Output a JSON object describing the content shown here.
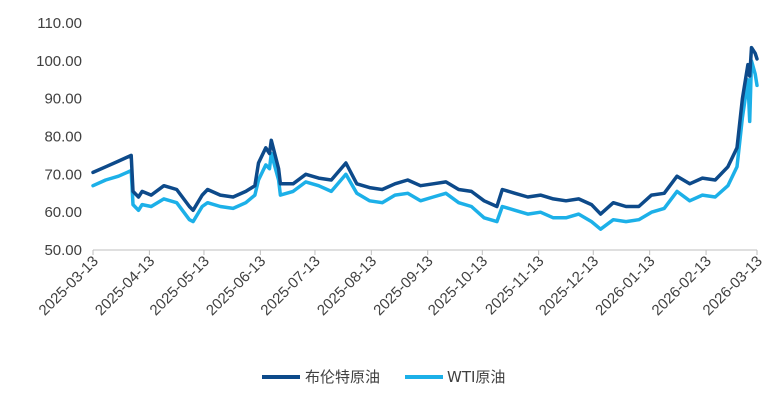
{
  "chart_data": {
    "type": "line",
    "title": "",
    "xlabel": "",
    "ylabel": "",
    "ylim": [
      50,
      110
    ],
    "yticks": [
      "50.00",
      "60.00",
      "70.00",
      "80.00",
      "90.00",
      "100.00",
      "110.00"
    ],
    "grid": false,
    "legend_position": "bottom-center",
    "x_start": "2025-03-13",
    "x_end": "2026-03-13",
    "xtick_labels": [
      "2025-03-13",
      "2025-04-13",
      "2025-05-13",
      "2025-06-13",
      "2025-07-13",
      "2025-08-13",
      "2025-09-13",
      "2025-10-13",
      "2025-11-13",
      "2025-12-13",
      "2026-01-13",
      "2026-02-13",
      "2026-03-13"
    ],
    "series": [
      {
        "name": "布伦特原油",
        "color": "#0d4a8a",
        "points": [
          [
            "2025-03-13",
            70.5
          ],
          [
            "2025-03-20",
            72.0
          ],
          [
            "2025-03-27",
            73.5
          ],
          [
            "2025-04-03",
            75.0
          ],
          [
            "2025-04-04",
            65.5
          ],
          [
            "2025-04-07",
            64.0
          ],
          [
            "2025-04-09",
            65.5
          ],
          [
            "2025-04-14",
            64.5
          ],
          [
            "2025-04-21",
            67.0
          ],
          [
            "2025-04-28",
            66.0
          ],
          [
            "2025-05-05",
            61.5
          ],
          [
            "2025-05-07",
            60.5
          ],
          [
            "2025-05-12",
            64.5
          ],
          [
            "2025-05-15",
            66.0
          ],
          [
            "2025-05-22",
            64.5
          ],
          [
            "2025-05-29",
            64.0
          ],
          [
            "2025-06-05",
            65.5
          ],
          [
            "2025-06-10",
            67.0
          ],
          [
            "2025-06-12",
            73.0
          ],
          [
            "2025-06-16",
            77.0
          ],
          [
            "2025-06-18",
            75.5
          ],
          [
            "2025-06-19",
            79.0
          ],
          [
            "2025-06-23",
            71.5
          ],
          [
            "2025-06-24",
            67.5
          ],
          [
            "2025-07-01",
            67.5
          ],
          [
            "2025-07-08",
            70.0
          ],
          [
            "2025-07-15",
            69.0
          ],
          [
            "2025-07-22",
            68.5
          ],
          [
            "2025-07-30",
            73.0
          ],
          [
            "2025-08-05",
            67.5
          ],
          [
            "2025-08-12",
            66.5
          ],
          [
            "2025-08-19",
            66.0
          ],
          [
            "2025-08-26",
            67.5
          ],
          [
            "2025-09-02",
            68.5
          ],
          [
            "2025-09-09",
            67.0
          ],
          [
            "2025-09-16",
            67.5
          ],
          [
            "2025-09-23",
            68.0
          ],
          [
            "2025-09-30",
            66.0
          ],
          [
            "2025-10-07",
            65.5
          ],
          [
            "2025-10-14",
            63.0
          ],
          [
            "2025-10-21",
            61.5
          ],
          [
            "2025-10-24",
            66.0
          ],
          [
            "2025-10-31",
            65.0
          ],
          [
            "2025-11-07",
            64.0
          ],
          [
            "2025-11-14",
            64.5
          ],
          [
            "2025-11-21",
            63.5
          ],
          [
            "2025-11-28",
            63.0
          ],
          [
            "2025-12-05",
            63.5
          ],
          [
            "2025-12-12",
            62.0
          ],
          [
            "2025-12-17",
            59.5
          ],
          [
            "2025-12-24",
            62.5
          ],
          [
            "2025-12-31",
            61.5
          ],
          [
            "2026-01-07",
            61.5
          ],
          [
            "2026-01-14",
            64.5
          ],
          [
            "2026-01-21",
            65.0
          ],
          [
            "2026-01-28",
            69.5
          ],
          [
            "2026-02-04",
            67.5
          ],
          [
            "2026-02-11",
            69.0
          ],
          [
            "2026-02-18",
            68.5
          ],
          [
            "2026-02-25",
            72.0
          ],
          [
            "2026-03-02",
            77.0
          ],
          [
            "2026-03-05",
            90.0
          ],
          [
            "2026-03-08",
            99.0
          ],
          [
            "2026-03-09",
            96.0
          ],
          [
            "2026-03-10",
            103.5
          ],
          [
            "2026-03-12",
            102.0
          ],
          [
            "2026-03-13",
            100.5
          ]
        ]
      },
      {
        "name": "WTI原油",
        "color": "#1cb0e8",
        "points": [
          [
            "2025-03-13",
            67.0
          ],
          [
            "2025-03-20",
            68.5
          ],
          [
            "2025-03-27",
            69.5
          ],
          [
            "2025-04-03",
            71.0
          ],
          [
            "2025-04-04",
            62.0
          ],
          [
            "2025-04-07",
            60.5
          ],
          [
            "2025-04-09",
            62.0
          ],
          [
            "2025-04-14",
            61.5
          ],
          [
            "2025-04-21",
            63.5
          ],
          [
            "2025-04-28",
            62.5
          ],
          [
            "2025-05-05",
            58.0
          ],
          [
            "2025-05-07",
            57.5
          ],
          [
            "2025-05-12",
            61.5
          ],
          [
            "2025-05-15",
            62.5
          ],
          [
            "2025-05-22",
            61.5
          ],
          [
            "2025-05-29",
            61.0
          ],
          [
            "2025-06-05",
            62.5
          ],
          [
            "2025-06-10",
            64.5
          ],
          [
            "2025-06-12",
            68.5
          ],
          [
            "2025-06-16",
            72.5
          ],
          [
            "2025-06-18",
            71.5
          ],
          [
            "2025-06-19",
            75.5
          ],
          [
            "2025-06-23",
            68.5
          ],
          [
            "2025-06-24",
            64.5
          ],
          [
            "2025-07-01",
            65.5
          ],
          [
            "2025-07-08",
            68.0
          ],
          [
            "2025-07-15",
            67.0
          ],
          [
            "2025-07-22",
            65.5
          ],
          [
            "2025-07-30",
            70.0
          ],
          [
            "2025-08-05",
            65.0
          ],
          [
            "2025-08-12",
            63.0
          ],
          [
            "2025-08-19",
            62.5
          ],
          [
            "2025-08-26",
            64.5
          ],
          [
            "2025-09-02",
            65.0
          ],
          [
            "2025-09-09",
            63.0
          ],
          [
            "2025-09-16",
            64.0
          ],
          [
            "2025-09-23",
            65.0
          ],
          [
            "2025-09-30",
            62.5
          ],
          [
            "2025-10-07",
            61.5
          ],
          [
            "2025-10-14",
            58.5
          ],
          [
            "2025-10-21",
            57.5
          ],
          [
            "2025-10-24",
            61.5
          ],
          [
            "2025-10-31",
            60.5
          ],
          [
            "2025-11-07",
            59.5
          ],
          [
            "2025-11-14",
            60.0
          ],
          [
            "2025-11-21",
            58.5
          ],
          [
            "2025-11-28",
            58.5
          ],
          [
            "2025-12-05",
            59.5
          ],
          [
            "2025-12-12",
            57.5
          ],
          [
            "2025-12-17",
            55.5
          ],
          [
            "2025-12-24",
            58.0
          ],
          [
            "2025-12-31",
            57.5
          ],
          [
            "2026-01-07",
            58.0
          ],
          [
            "2026-01-14",
            60.0
          ],
          [
            "2026-01-21",
            61.0
          ],
          [
            "2026-01-28",
            65.5
          ],
          [
            "2026-02-04",
            63.0
          ],
          [
            "2026-02-11",
            64.5
          ],
          [
            "2026-02-18",
            64.0
          ],
          [
            "2026-02-25",
            67.0
          ],
          [
            "2026-03-02",
            72.0
          ],
          [
            "2026-03-05",
            85.0
          ],
          [
            "2026-03-08",
            95.0
          ],
          [
            "2026-03-09",
            84.0
          ],
          [
            "2026-03-10",
            100.0
          ],
          [
            "2026-03-12",
            96.5
          ],
          [
            "2026-03-13",
            93.5
          ]
        ]
      }
    ]
  }
}
